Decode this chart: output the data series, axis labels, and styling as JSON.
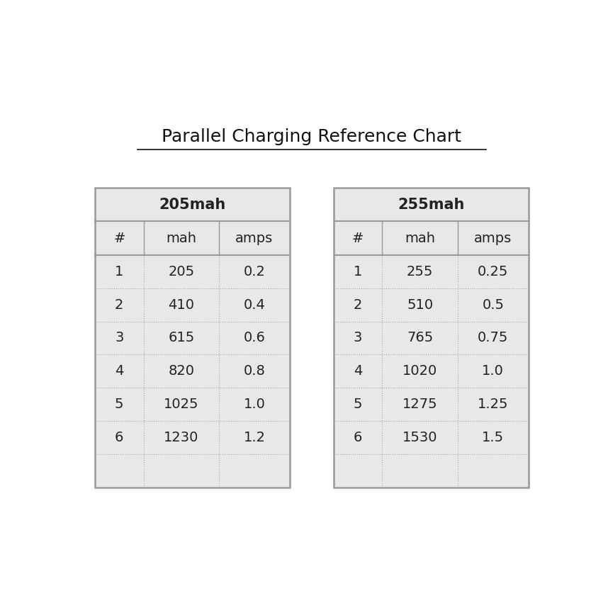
{
  "title": "Parallel Charging Reference Chart",
  "section1_header": "205mah",
  "section2_header": "255mah",
  "col_headers": [
    "#",
    "mah",
    "amps",
    "",
    "#",
    "mah",
    "amps"
  ],
  "rows": [
    [
      "1",
      "205",
      "0.2",
      "",
      "1",
      "255",
      "0.25"
    ],
    [
      "2",
      "410",
      "0.4",
      "",
      "2",
      "510",
      "0.5"
    ],
    [
      "3",
      "615",
      "0.6",
      "",
      "3",
      "765",
      "0.75"
    ],
    [
      "4",
      "820",
      "0.8",
      "",
      "4",
      "1020",
      "1.0"
    ],
    [
      "5",
      "1025",
      "1.0",
      "",
      "5",
      "1275",
      "1.25"
    ],
    [
      "6",
      "1230",
      "1.2",
      "",
      "6",
      "1530",
      "1.5"
    ],
    [
      "",
      "",
      "",
      "",
      "",
      "",
      ""
    ]
  ],
  "white_bg": "#ffffff",
  "table_bg": "#e8e8e8",
  "border_color": "#999999",
  "dotted_color": "#aaaaaa",
  "title_fontsize": 18,
  "header_fontsize": 15,
  "cell_fontsize": 14,
  "figsize": [
    8.58,
    8.58
  ]
}
